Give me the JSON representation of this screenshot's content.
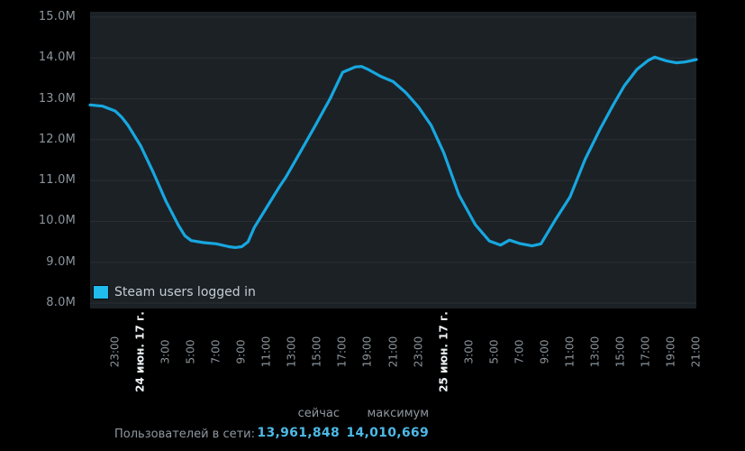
{
  "colors": {
    "bg": "#000000",
    "plot_bg": "#1c2126",
    "grid": "#2a2f34",
    "line": "#17a7e0",
    "swatch": "#1fbcec",
    "axis_text": "#8c959c",
    "date_text": "#eef2f4",
    "legend_text": "#c4cdd3",
    "muted_text": "#8f98a0",
    "value_text": "#4db9e6"
  },
  "legend": {
    "label": "Steam users logged in"
  },
  "footer": {
    "col_now": "сейчас",
    "col_max": "максимум",
    "row_label": "Пользователей в сети:",
    "now_value": "13,961,848",
    "max_value": "14,010,669"
  },
  "chart_data": {
    "type": "line",
    "title": "",
    "xlabel": "",
    "ylabel": "",
    "legend_position": "bottom-left inside plot",
    "grid": "horizontal only",
    "series_name": "Steam users logged in",
    "ylim": [
      8,
      15
    ],
    "y_unit": "millions of users",
    "x_unit": "hours from chart start (left edge = 21:00 before the '24 июн. 17 г.' tick; 48 h total)",
    "y_ticks": [
      {
        "label": "15.0M",
        "value": 15
      },
      {
        "label": "14.0M",
        "value": 14
      },
      {
        "label": "13.0M",
        "value": 13
      },
      {
        "label": "12.0M",
        "value": 12
      },
      {
        "label": "11.0M",
        "value": 11
      },
      {
        "label": "10.0M",
        "value": 10
      },
      {
        "label": "9.0M",
        "value": 9
      },
      {
        "label": "8.0M",
        "value": 8
      }
    ],
    "x_ticks": [
      {
        "hour": 2,
        "label": "23:00"
      },
      {
        "hour": 4,
        "label": "24 июн. 17 г.",
        "is_date": true
      },
      {
        "hour": 6,
        "label": "3:00"
      },
      {
        "hour": 8,
        "label": "5:00"
      },
      {
        "hour": 10,
        "label": "7:00"
      },
      {
        "hour": 12,
        "label": "9:00"
      },
      {
        "hour": 14,
        "label": "11:00"
      },
      {
        "hour": 16,
        "label": "13:00"
      },
      {
        "hour": 18,
        "label": "15:00"
      },
      {
        "hour": 20,
        "label": "17:00"
      },
      {
        "hour": 22,
        "label": "19:00"
      },
      {
        "hour": 24,
        "label": "21:00"
      },
      {
        "hour": 26,
        "label": "23:00"
      },
      {
        "hour": 28,
        "label": "25 июн. 17 г.",
        "is_date": true
      },
      {
        "hour": 30,
        "label": "3:00"
      },
      {
        "hour": 32,
        "label": "5:00"
      },
      {
        "hour": 34,
        "label": "7:00"
      },
      {
        "hour": 36,
        "label": "9:00"
      },
      {
        "hour": 38,
        "label": "11:00"
      },
      {
        "hour": 40,
        "label": "13:00"
      },
      {
        "hour": 42,
        "label": "15:00"
      },
      {
        "hour": 44,
        "label": "17:00"
      },
      {
        "hour": 46,
        "label": "19:00"
      },
      {
        "hour": 48,
        "label": "21:00"
      }
    ],
    "points": [
      [
        0,
        12.85
      ],
      [
        1,
        12.82
      ],
      [
        2,
        12.7
      ],
      [
        2.5,
        12.55
      ],
      [
        3,
        12.35
      ],
      [
        4,
        11.85
      ],
      [
        5,
        11.2
      ],
      [
        6,
        10.5
      ],
      [
        7,
        9.9
      ],
      [
        7.5,
        9.65
      ],
      [
        8,
        9.53
      ],
      [
        9,
        9.48
      ],
      [
        10,
        9.45
      ],
      [
        11,
        9.38
      ],
      [
        11.5,
        9.36
      ],
      [
        12,
        9.38
      ],
      [
        12.5,
        9.5
      ],
      [
        13,
        9.85
      ],
      [
        14,
        10.35
      ],
      [
        15,
        10.85
      ],
      [
        15.5,
        11.08
      ],
      [
        16.6,
        11.67
      ],
      [
        17.8,
        12.33
      ],
      [
        19,
        13.0
      ],
      [
        20,
        13.65
      ],
      [
        21,
        13.78
      ],
      [
        21.5,
        13.79
      ],
      [
        22,
        13.72
      ],
      [
        23,
        13.55
      ],
      [
        24,
        13.42
      ],
      [
        25,
        13.15
      ],
      [
        26,
        12.8
      ],
      [
        27,
        12.35
      ],
      [
        28,
        11.68
      ],
      [
        29.2,
        10.65
      ],
      [
        30.5,
        9.92
      ],
      [
        31.6,
        9.52
      ],
      [
        32.5,
        9.42
      ],
      [
        33.2,
        9.54
      ],
      [
        34,
        9.46
      ],
      [
        35,
        9.4
      ],
      [
        35.7,
        9.45
      ],
      [
        36.9,
        10.07
      ],
      [
        38,
        10.6
      ],
      [
        39.2,
        11.52
      ],
      [
        40.4,
        12.27
      ],
      [
        41.4,
        12.84
      ],
      [
        42.3,
        13.32
      ],
      [
        43.3,
        13.72
      ],
      [
        44.2,
        13.94
      ],
      [
        44.7,
        14.02
      ],
      [
        45.6,
        13.93
      ],
      [
        46.4,
        13.88
      ],
      [
        47.1,
        13.9
      ],
      [
        48,
        13.96
      ]
    ],
    "stats": {
      "current_users": 13961848,
      "max_users": 14010669
    }
  }
}
